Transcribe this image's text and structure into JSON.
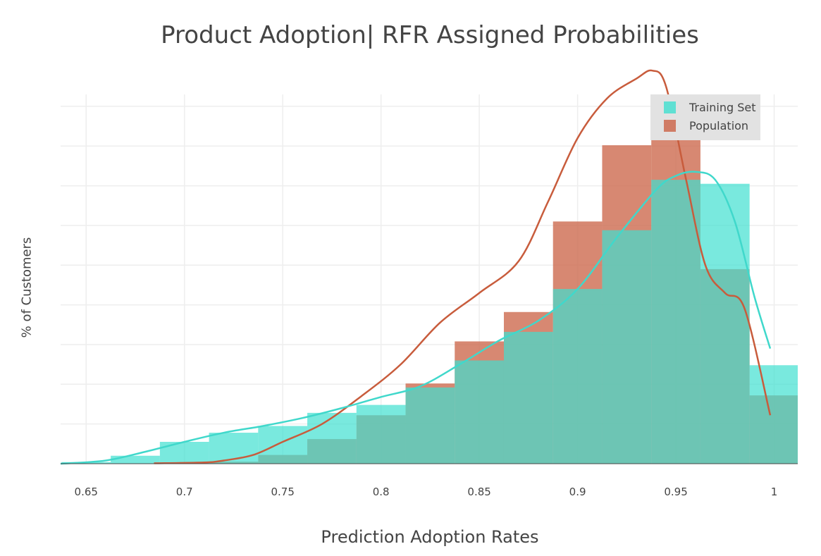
{
  "chart_data": {
    "type": "bar",
    "title": "Product Adoption| RFR Assigned Probabilities",
    "xlabel": "Prediction Adoption Rates",
    "ylabel": "% of Customers",
    "xlim": [
      0.637,
      1.012
    ],
    "ylim": [
      0,
      9.3
    ],
    "x_ticks": [
      "0.65",
      "0.7",
      "0.75",
      "0.8",
      "0.85",
      "0.9",
      "0.95",
      "1"
    ],
    "x_tick_values": [
      0.65,
      0.7,
      0.75,
      0.8,
      0.85,
      0.9,
      0.95,
      1.0
    ],
    "y_tick_labels_shown": false,
    "grid": true,
    "legend_position": "top-right",
    "series": [
      {
        "name": "Population",
        "color": "#cd6a4f",
        "kind": "histogram",
        "bins": [
          {
            "x0": 0.6875,
            "x1": 0.7125,
            "value": 0.02
          },
          {
            "x0": 0.7125,
            "x1": 0.7375,
            "value": 0.05
          },
          {
            "x0": 0.7375,
            "x1": 0.7625,
            "value": 0.22
          },
          {
            "x0": 0.7625,
            "x1": 0.7875,
            "value": 0.62
          },
          {
            "x0": 0.7875,
            "x1": 0.8125,
            "value": 1.22
          },
          {
            "x0": 0.8125,
            "x1": 0.8375,
            "value": 2.02
          },
          {
            "x0": 0.8375,
            "x1": 0.8625,
            "value": 3.08
          },
          {
            "x0": 0.8625,
            "x1": 0.8875,
            "value": 3.82
          },
          {
            "x0": 0.8875,
            "x1": 0.9125,
            "value": 6.1
          },
          {
            "x0": 0.9125,
            "x1": 0.9375,
            "value": 8.02
          },
          {
            "x0": 0.9375,
            "x1": 0.9625,
            "value": 8.28
          },
          {
            "x0": 0.9625,
            "x1": 0.9875,
            "value": 4.9
          },
          {
            "x0": 0.9875,
            "x1": 1.0125,
            "value": 1.72
          }
        ],
        "density_curve": {
          "x": [
            0.6845,
            0.71,
            0.72,
            0.735,
            0.75,
            0.77,
            0.79,
            0.81,
            0.83,
            0.85,
            0.87,
            0.885,
            0.9,
            0.915,
            0.93,
            0.938,
            0.945,
            0.955,
            0.965,
            0.975,
            0.985,
            0.998
          ],
          "y": [
            0.01,
            0.03,
            0.08,
            0.22,
            0.55,
            1.0,
            1.7,
            2.5,
            3.55,
            4.3,
            5.1,
            6.6,
            8.2,
            9.2,
            9.7,
            9.9,
            9.5,
            7.2,
            5.0,
            4.3,
            3.9,
            1.22
          ]
        }
      },
      {
        "name": "Training Set",
        "color": "#40e0d0",
        "kind": "histogram",
        "bins": [
          {
            "x0": 0.6375,
            "x1": 0.6625,
            "value": 0.04
          },
          {
            "x0": 0.6625,
            "x1": 0.6875,
            "value": 0.2
          },
          {
            "x0": 0.6875,
            "x1": 0.7125,
            "value": 0.55
          },
          {
            "x0": 0.7125,
            "x1": 0.7375,
            "value": 0.78
          },
          {
            "x0": 0.7375,
            "x1": 0.7625,
            "value": 0.95
          },
          {
            "x0": 0.7625,
            "x1": 0.7875,
            "value": 1.28
          },
          {
            "x0": 0.7875,
            "x1": 0.8125,
            "value": 1.48
          },
          {
            "x0": 0.8125,
            "x1": 0.8375,
            "value": 1.92
          },
          {
            "x0": 0.8375,
            "x1": 0.8625,
            "value": 2.6
          },
          {
            "x0": 0.8625,
            "x1": 0.8875,
            "value": 3.32
          },
          {
            "x0": 0.8875,
            "x1": 0.9125,
            "value": 4.4
          },
          {
            "x0": 0.9125,
            "x1": 0.9375,
            "value": 5.88
          },
          {
            "x0": 0.9375,
            "x1": 0.9625,
            "value": 7.15
          },
          {
            "x0": 0.9625,
            "x1": 0.9875,
            "value": 7.05
          },
          {
            "x0": 0.9875,
            "x1": 1.0125,
            "value": 2.48
          }
        ],
        "density_curve": {
          "x": [
            0.637,
            0.66,
            0.68,
            0.7,
            0.72,
            0.74,
            0.76,
            0.78,
            0.8,
            0.82,
            0.84,
            0.86,
            0.88,
            0.9,
            0.92,
            0.94,
            0.95,
            0.96,
            0.97,
            0.98,
            0.99,
            0.998
          ],
          "y": [
            0.0,
            0.08,
            0.3,
            0.55,
            0.78,
            0.95,
            1.15,
            1.4,
            1.68,
            1.95,
            2.5,
            3.1,
            3.6,
            4.4,
            5.7,
            6.9,
            7.25,
            7.35,
            7.15,
            6.1,
            4.2,
            2.9
          ]
        }
      }
    ]
  }
}
